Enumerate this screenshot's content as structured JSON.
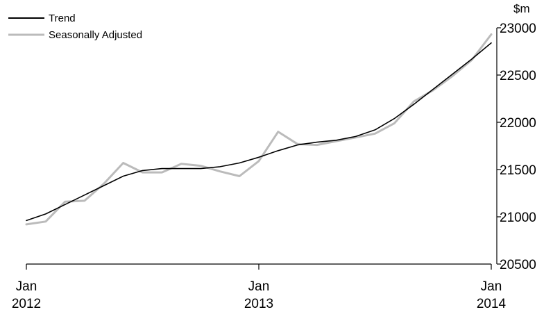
{
  "chart_data": {
    "type": "line",
    "x_start": "Jan 2012",
    "x_step": "month",
    "x_ticks": [
      {
        "month_index": 0,
        "line1": "Jan",
        "line2": "2012"
      },
      {
        "month_index": 12,
        "line1": "Jan",
        "line2": "2013"
      },
      {
        "month_index": 24,
        "line1": "Jan",
        "line2": "2014"
      }
    ],
    "ylabel": "$m",
    "ylim": [
      20500,
      23000
    ],
    "y_ticks": [
      20500,
      21000,
      21500,
      22000,
      22500,
      23000
    ],
    "y_axis_side": "right",
    "grid": false,
    "legend_position": "top-left",
    "series": [
      {
        "name": "Trend",
        "color": "#000000",
        "values": [
          20960,
          21030,
          21130,
          21230,
          21330,
          21430,
          21490,
          21510,
          21510,
          21510,
          21530,
          21570,
          21630,
          21700,
          21760,
          21790,
          21810,
          21850,
          21920,
          22040,
          22190,
          22350,
          22510,
          22670,
          22840
        ]
      },
      {
        "name": "Seasonally Adjusted",
        "color": "#bbbbbb",
        "values": [
          20920,
          20950,
          21160,
          21170,
          21350,
          21570,
          21470,
          21470,
          21560,
          21540,
          21480,
          21430,
          21590,
          21900,
          21770,
          21760,
          21800,
          21840,
          21880,
          21990,
          22220,
          22340,
          22490,
          22660,
          22930
        ]
      }
    ]
  }
}
